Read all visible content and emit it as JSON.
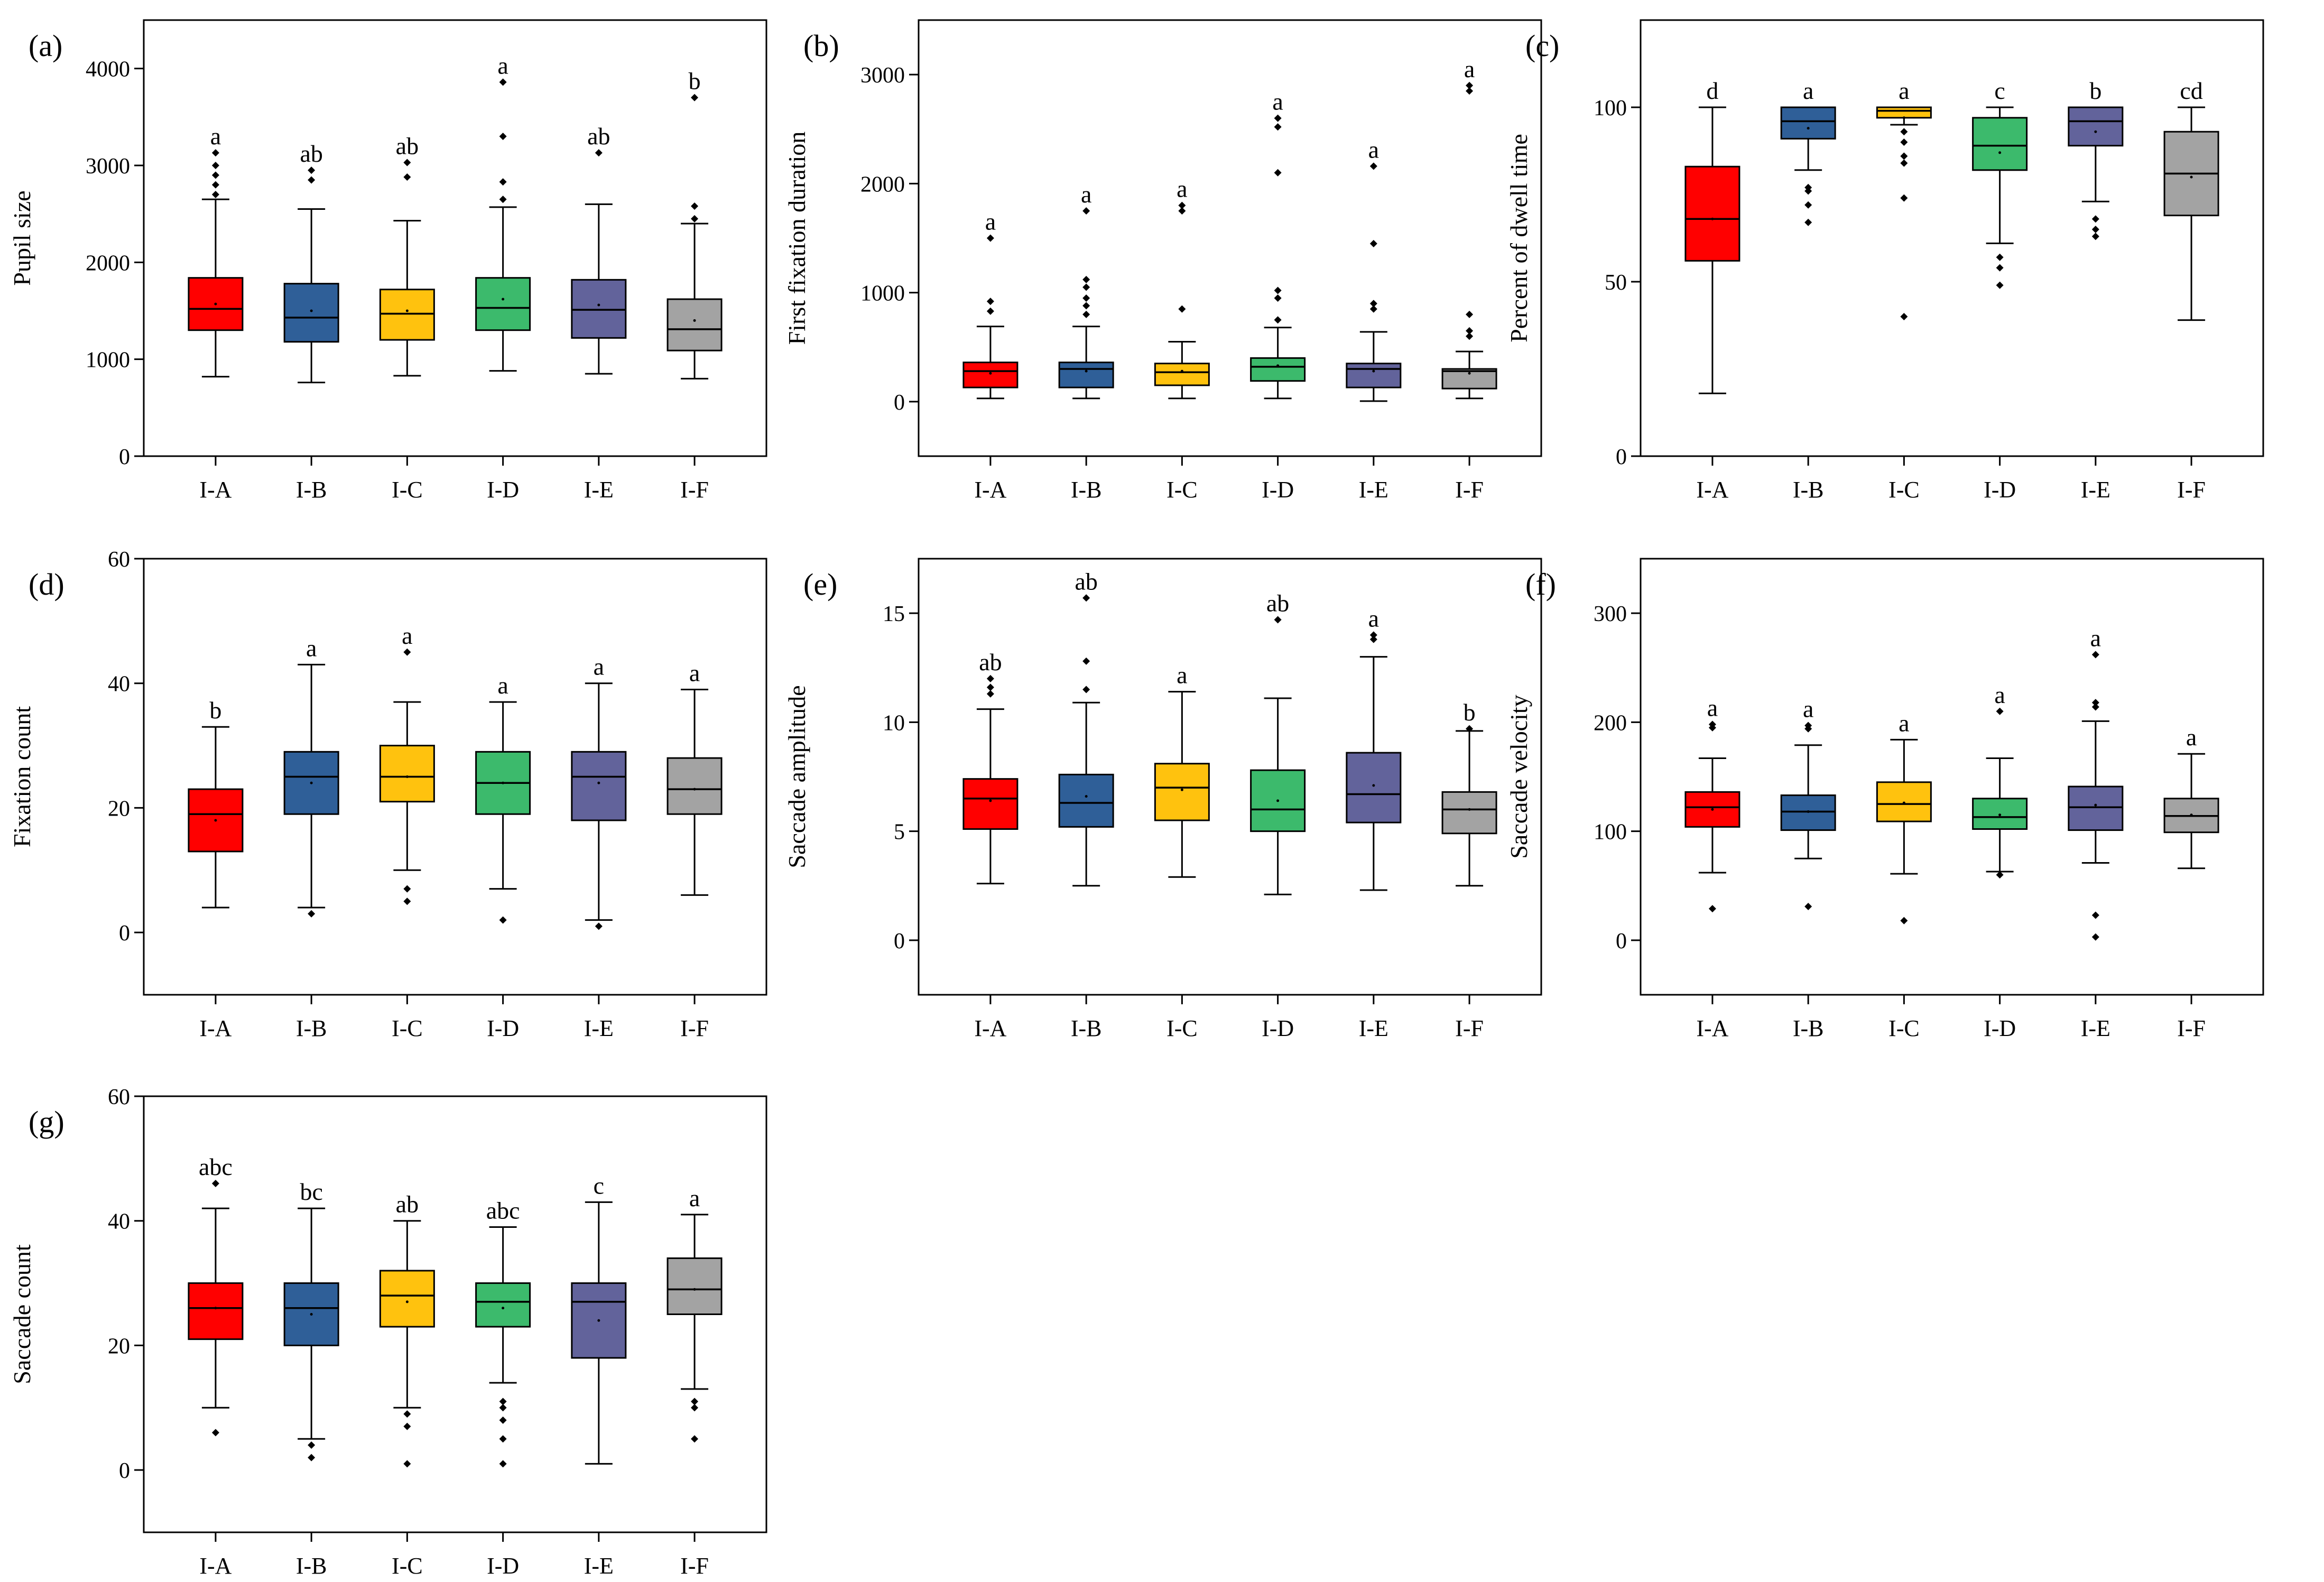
{
  "figure": {
    "categories": [
      "I-A",
      "I-B",
      "I-C",
      "I-D",
      "I-E",
      "I-F"
    ],
    "colors": [
      "#ff0000",
      "#2f5f98",
      "#ffc20e",
      "#3cba6c",
      "#62639b",
      "#a3a3a3"
    ]
  },
  "chart_data": [
    {
      "type": "box",
      "panel_label": "(a)",
      "ylabel": "Pupil size",
      "ylim": [
        0,
        4500
      ],
      "yticks": [
        0,
        1000,
        2000,
        3000,
        4000
      ],
      "boxes": [
        {
          "q1": 1300,
          "median": 1520,
          "q3": 1840,
          "whisker_low": 820,
          "whisker_high": 2650,
          "mean": 1570,
          "outliers": [
            2700,
            2800,
            2900,
            3000,
            3130
          ],
          "letter": "a"
        },
        {
          "q1": 1180,
          "median": 1430,
          "q3": 1780,
          "whisker_low": 760,
          "whisker_high": 2550,
          "mean": 1500,
          "outliers": [
            2850,
            2950
          ],
          "letter": "ab"
        },
        {
          "q1": 1200,
          "median": 1470,
          "q3": 1720,
          "whisker_low": 830,
          "whisker_high": 2430,
          "mean": 1500,
          "outliers": [
            2880,
            3030
          ],
          "letter": "ab"
        },
        {
          "q1": 1300,
          "median": 1530,
          "q3": 1840,
          "whisker_low": 880,
          "whisker_high": 2570,
          "mean": 1620,
          "outliers": [
            2650,
            2830,
            3300,
            3860
          ],
          "letter": "a"
        },
        {
          "q1": 1220,
          "median": 1510,
          "q3": 1820,
          "whisker_low": 850,
          "whisker_high": 2600,
          "mean": 1560,
          "outliers": [
            3130
          ],
          "letter": "ab"
        },
        {
          "q1": 1090,
          "median": 1310,
          "q3": 1620,
          "whisker_low": 800,
          "whisker_high": 2400,
          "mean": 1400,
          "outliers": [
            2450,
            2580,
            3700
          ],
          "letter": "b"
        }
      ]
    },
    {
      "type": "box",
      "panel_label": "(b)",
      "ylabel": "First fixation duration",
      "ylim": [
        -500,
        3500
      ],
      "yticks": [
        0,
        1000,
        2000,
        3000
      ],
      "boxes": [
        {
          "q1": 130,
          "median": 280,
          "q3": 360,
          "whisker_low": 30,
          "whisker_high": 690,
          "mean": 260,
          "outliers": [
            830,
            920,
            1500
          ],
          "letter": "a"
        },
        {
          "q1": 130,
          "median": 300,
          "q3": 360,
          "whisker_low": 30,
          "whisker_high": 690,
          "mean": 280,
          "outliers": [
            800,
            880,
            950,
            1050,
            1120,
            1750
          ],
          "letter": "a"
        },
        {
          "q1": 150,
          "median": 270,
          "q3": 350,
          "whisker_low": 30,
          "whisker_high": 550,
          "mean": 280,
          "outliers": [
            850,
            1750,
            1800
          ],
          "letter": "a"
        },
        {
          "q1": 190,
          "median": 320,
          "q3": 400,
          "whisker_low": 30,
          "whisker_high": 680,
          "mean": 330,
          "outliers": [
            750,
            950,
            1020,
            2100,
            2520,
            2600
          ],
          "letter": "a"
        },
        {
          "q1": 130,
          "median": 300,
          "q3": 350,
          "whisker_low": 5,
          "whisker_high": 640,
          "mean": 280,
          "outliers": [
            850,
            900,
            1450,
            2160
          ],
          "letter": "a"
        },
        {
          "q1": 120,
          "median": 280,
          "q3": 300,
          "whisker_low": 30,
          "whisker_high": 460,
          "mean": 260,
          "outliers": [
            600,
            650,
            800,
            2850,
            2900
          ],
          "letter": "a"
        }
      ]
    },
    {
      "type": "box",
      "panel_label": "(c)",
      "ylabel": "Percent of dwell time",
      "ylim": [
        0,
        125
      ],
      "yticks": [
        0,
        50,
        100
      ],
      "boxes": [
        {
          "q1": 56,
          "median": 68,
          "q3": 83,
          "whisker_low": 18,
          "whisker_high": 100,
          "mean": 68,
          "outliers": [],
          "letter": "d"
        },
        {
          "q1": 91,
          "median": 96,
          "q3": 100,
          "whisker_low": 82,
          "whisker_high": 100,
          "mean": 94,
          "outliers": [
            67,
            72,
            76,
            77
          ],
          "letter": "a"
        },
        {
          "q1": 97,
          "median": 99,
          "q3": 100,
          "whisker_low": 95,
          "whisker_high": 100,
          "mean": 97,
          "outliers": [
            40,
            74,
            84,
            86,
            90,
            93
          ],
          "letter": "a"
        },
        {
          "q1": 82,
          "median": 89,
          "q3": 97,
          "whisker_low": 61,
          "whisker_high": 100,
          "mean": 87,
          "outliers": [
            49,
            54,
            57
          ],
          "letter": "c"
        },
        {
          "q1": 89,
          "median": 96,
          "q3": 100,
          "whisker_low": 73,
          "whisker_high": 100,
          "mean": 93,
          "outliers": [
            63,
            65,
            68
          ],
          "letter": "b"
        },
        {
          "q1": 69,
          "median": 81,
          "q3": 93,
          "whisker_low": 39,
          "whisker_high": 100,
          "mean": 80,
          "outliers": [],
          "letter": "cd"
        }
      ]
    },
    {
      "type": "box",
      "panel_label": "(d)",
      "ylabel": "Fixation count",
      "ylim": [
        -10,
        60
      ],
      "yticks": [
        0,
        20,
        40,
        60
      ],
      "boxes": [
        {
          "q1": 13,
          "median": 19,
          "q3": 23,
          "whisker_low": 4,
          "whisker_high": 33,
          "mean": 18,
          "outliers": [],
          "letter": "b"
        },
        {
          "q1": 19,
          "median": 25,
          "q3": 29,
          "whisker_low": 4,
          "whisker_high": 43,
          "mean": 24,
          "outliers": [
            3
          ],
          "letter": "a"
        },
        {
          "q1": 21,
          "median": 25,
          "q3": 30,
          "whisker_low": 10,
          "whisker_high": 37,
          "mean": 25,
          "outliers": [
            5,
            7,
            45
          ],
          "letter": "a"
        },
        {
          "q1": 19,
          "median": 24,
          "q3": 29,
          "whisker_low": 7,
          "whisker_high": 37,
          "mean": 24,
          "outliers": [
            2
          ],
          "letter": "a"
        },
        {
          "q1": 18,
          "median": 25,
          "q3": 29,
          "whisker_low": 2,
          "whisker_high": 40,
          "mean": 24,
          "outliers": [
            1
          ],
          "letter": "a"
        },
        {
          "q1": 19,
          "median": 23,
          "q3": 28,
          "whisker_low": 6,
          "whisker_high": 39,
          "mean": 23,
          "outliers": [],
          "letter": "a"
        }
      ]
    },
    {
      "type": "box",
      "panel_label": "(e)",
      "ylabel": "Saccade amplitude",
      "ylim": [
        -2.5,
        17.5
      ],
      "yticks": [
        0,
        5,
        10,
        15
      ],
      "boxes": [
        {
          "q1": 5.1,
          "median": 6.5,
          "q3": 7.4,
          "whisker_low": 2.6,
          "whisker_high": 10.6,
          "mean": 6.4,
          "outliers": [
            11.3,
            11.6,
            12.0
          ],
          "letter": "ab"
        },
        {
          "q1": 5.2,
          "median": 6.3,
          "q3": 7.6,
          "whisker_low": 2.5,
          "whisker_high": 10.9,
          "mean": 6.6,
          "outliers": [
            11.5,
            12.8,
            15.7
          ],
          "letter": "ab"
        },
        {
          "q1": 5.5,
          "median": 7.0,
          "q3": 8.1,
          "whisker_low": 2.9,
          "whisker_high": 11.4,
          "mean": 6.9,
          "outliers": [],
          "letter": "a"
        },
        {
          "q1": 5.0,
          "median": 6.0,
          "q3": 7.8,
          "whisker_low": 2.1,
          "whisker_high": 11.1,
          "mean": 6.4,
          "outliers": [
            14.7
          ],
          "letter": "ab"
        },
        {
          "q1": 5.4,
          "median": 6.7,
          "q3": 8.6,
          "whisker_low": 2.3,
          "whisker_high": 13.0,
          "mean": 7.1,
          "outliers": [
            13.8,
            14.0
          ],
          "letter": "a"
        },
        {
          "q1": 4.9,
          "median": 6.0,
          "q3": 6.8,
          "whisker_low": 2.5,
          "whisker_high": 9.6,
          "mean": 6.0,
          "outliers": [
            9.7
          ],
          "letter": "b"
        }
      ]
    },
    {
      "type": "box",
      "panel_label": "(f)",
      "ylabel": "Saccade velocity",
      "ylim": [
        -50,
        350
      ],
      "yticks": [
        0,
        100,
        200,
        300
      ],
      "boxes": [
        {
          "q1": 104,
          "median": 122,
          "q3": 136,
          "whisker_low": 62,
          "whisker_high": 167,
          "mean": 120,
          "outliers": [
            29,
            195,
            198
          ],
          "letter": "a"
        },
        {
          "q1": 101,
          "median": 118,
          "q3": 133,
          "whisker_low": 75,
          "whisker_high": 179,
          "mean": 118,
          "outliers": [
            31,
            194,
            197
          ],
          "letter": "a"
        },
        {
          "q1": 109,
          "median": 125,
          "q3": 145,
          "whisker_low": 61,
          "whisker_high": 184,
          "mean": 126,
          "outliers": [
            18
          ],
          "letter": "a"
        },
        {
          "q1": 102,
          "median": 113,
          "q3": 130,
          "whisker_low": 63,
          "whisker_high": 167,
          "mean": 115,
          "outliers": [
            60,
            210
          ],
          "letter": "a"
        },
        {
          "q1": 101,
          "median": 122,
          "q3": 141,
          "whisker_low": 71,
          "whisker_high": 201,
          "mean": 124,
          "outliers": [
            3,
            23,
            214,
            218,
            262
          ],
          "letter": "a"
        },
        {
          "q1": 99,
          "median": 114,
          "q3": 130,
          "whisker_low": 66,
          "whisker_high": 171,
          "mean": 115,
          "outliers": [],
          "letter": "a"
        }
      ]
    },
    {
      "type": "box",
      "panel_label": "(g)",
      "ylabel": "Saccade count",
      "ylim": [
        -10,
        60
      ],
      "yticks": [
        0,
        20,
        40,
        60
      ],
      "boxes": [
        {
          "q1": 21,
          "median": 26,
          "q3": 30,
          "whisker_low": 10,
          "whisker_high": 42,
          "mean": 26,
          "outliers": [
            6,
            46
          ],
          "letter": "abc"
        },
        {
          "q1": 20,
          "median": 26,
          "q3": 30,
          "whisker_low": 5,
          "whisker_high": 42,
          "mean": 25,
          "outliers": [
            2,
            4
          ],
          "letter": "bc"
        },
        {
          "q1": 23,
          "median": 28,
          "q3": 32,
          "whisker_low": 10,
          "whisker_high": 40,
          "mean": 27,
          "outliers": [
            1,
            7,
            9
          ],
          "letter": "ab"
        },
        {
          "q1": 23,
          "median": 27,
          "q3": 30,
          "whisker_low": 14,
          "whisker_high": 39,
          "mean": 26,
          "outliers": [
            1,
            5,
            8,
            10,
            11
          ],
          "letter": "abc"
        },
        {
          "q1": 18,
          "median": 27,
          "q3": 30,
          "whisker_low": 1,
          "whisker_high": 43,
          "mean": 24,
          "outliers": [],
          "letter": "c"
        },
        {
          "q1": 25,
          "median": 29,
          "q3": 34,
          "whisker_low": 13,
          "whisker_high": 41,
          "mean": 29,
          "outliers": [
            5,
            10,
            11
          ],
          "letter": "a"
        }
      ]
    }
  ]
}
